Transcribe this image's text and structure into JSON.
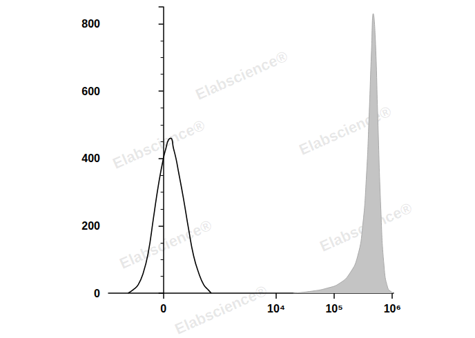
{
  "chart_data": {
    "type": "line",
    "log": "x",
    "grid": false,
    "tick_labels": true,
    "annotations": [
      "Elabscience®"
    ],
    "xlim": [
      -1000,
      1050000
    ],
    "xticks": [
      0,
      {
        "value": 10000,
        "label": "10⁴"
      },
      {
        "value": 100000,
        "label": "10⁵"
      },
      {
        "value": 1000000,
        "label": "10⁶"
      }
    ],
    "ylim": [
      0,
      850
    ],
    "yticks": [
      0,
      200,
      400,
      600,
      800
    ],
    "series": [
      {
        "type": "line",
        "color": "#000000",
        "x": [
          -436,
          -346,
          -269,
          -203,
          -146,
          -94,
          -46,
          0,
          23,
          46,
          69,
          94,
          119,
          146,
          203,
          269,
          346,
          436,
          544,
          674,
          748
        ],
        "values": [
          0,
          10,
          25,
          60,
          120,
          220,
          320,
          400,
          430,
          455,
          460,
          430,
          400,
          360,
          280,
          190,
          110,
          60,
          25,
          8,
          0
        ]
      },
      {
        "type": "area",
        "color": "#c4c4c4",
        "x": [
          19700,
          37800,
          76000,
          125500,
          187000,
          253000,
          309000,
          359000,
          397000,
          438000,
          470000,
          509000,
          563000,
          635000,
          722000,
          839000,
          975000,
          1025000
        ],
        "values": [
          0,
          5,
          15,
          30,
          60,
          110,
          200,
          350,
          520,
          720,
          830,
          760,
          520,
          250,
          80,
          15,
          3,
          0
        ]
      }
    ]
  }
}
